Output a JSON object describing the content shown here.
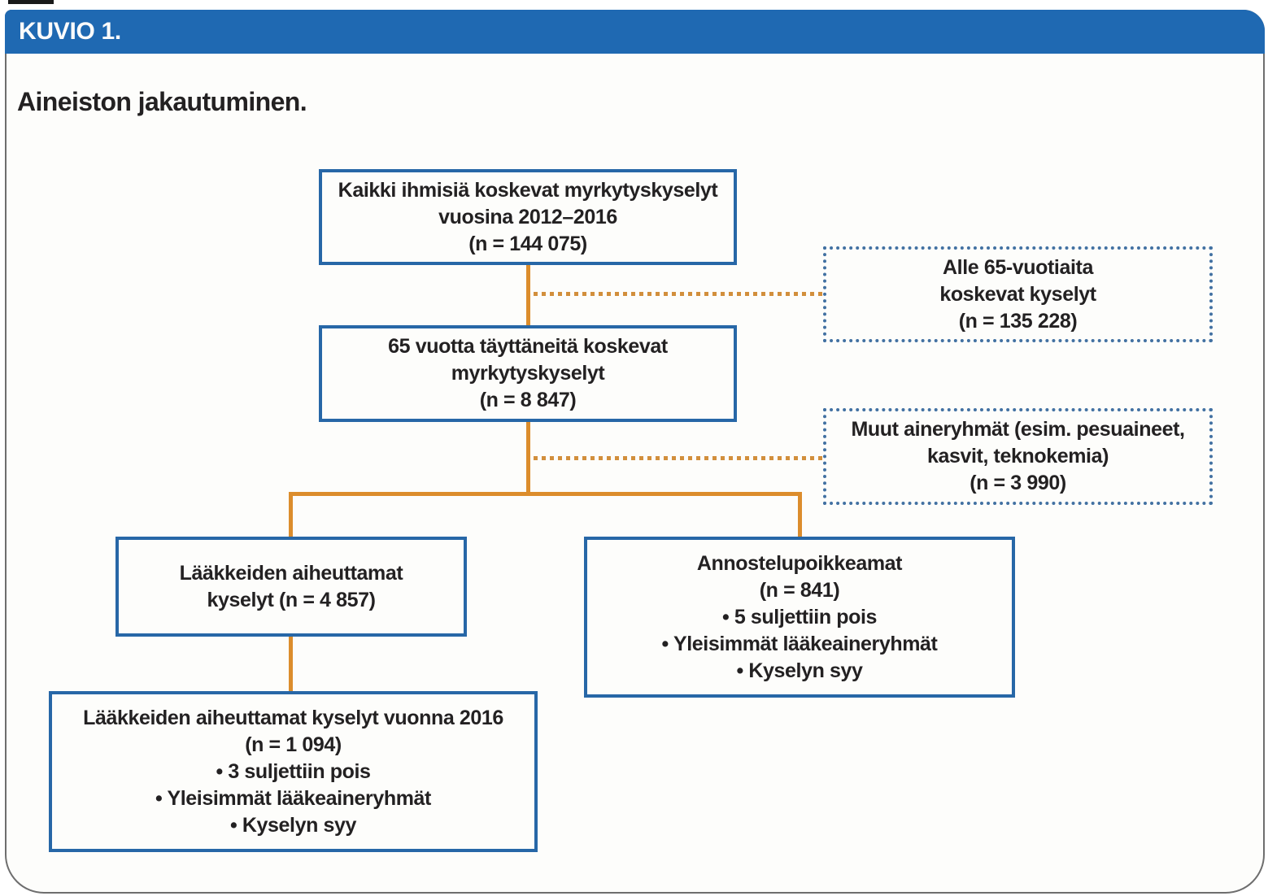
{
  "figure": {
    "kicker": "KUVIO 1.",
    "title": "Aineiston jakautuminen."
  },
  "nodes": {
    "all_queries": {
      "lines": [
        "Kaikki ihmisiä koskevat myrkytyskyselyt",
        "vuosina 2012–2016",
        "(n = 144 075)"
      ]
    },
    "under_65_excluded": {
      "lines": [
        "Alle 65-vuotiaita",
        "koskevat kyselyt",
        "(n = 135 228)"
      ]
    },
    "age_65_plus": {
      "lines": [
        "65 vuotta täyttäneitä koskevat",
        "myrkytyskyselyt",
        "(n = 8 847)"
      ]
    },
    "other_substance_groups": {
      "lines": [
        "Muut aineryhmät (esim. pesuaineet,",
        "kasvit, teknokemia)",
        "(n = 3 990)"
      ]
    },
    "medicine_queries": {
      "lines": [
        "Lääkkeiden aiheuttamat",
        "kyselyt (n = 4 857)"
      ]
    },
    "dosing_errors": {
      "lines": [
        "Annostelupoikkeamat",
        "(n = 841)",
        "• 5 suljettiin pois",
        "• Yleisimmät lääkeaineryhmät",
        "• Kyselyn syy"
      ]
    },
    "medicine_queries_2016": {
      "lines": [
        "Lääkkeiden aiheuttamat kyselyt vuonna 2016",
        "(n = 1 094)",
        "• 3 suljettiin pois",
        "• Yleisimmät lääkeaineryhmät",
        "• Kyselyn syy"
      ]
    }
  },
  "colors": {
    "header_bg": "#1f69b2",
    "header_text": "#fbfbfb",
    "solid_box_border": "#2767a7",
    "dashed_box_border": "#4271a2",
    "connector_solid": "#dc8d2c",
    "connector_dotted": "#d28f3c",
    "text": "#232122",
    "card_border": "#6e6e6e"
  }
}
